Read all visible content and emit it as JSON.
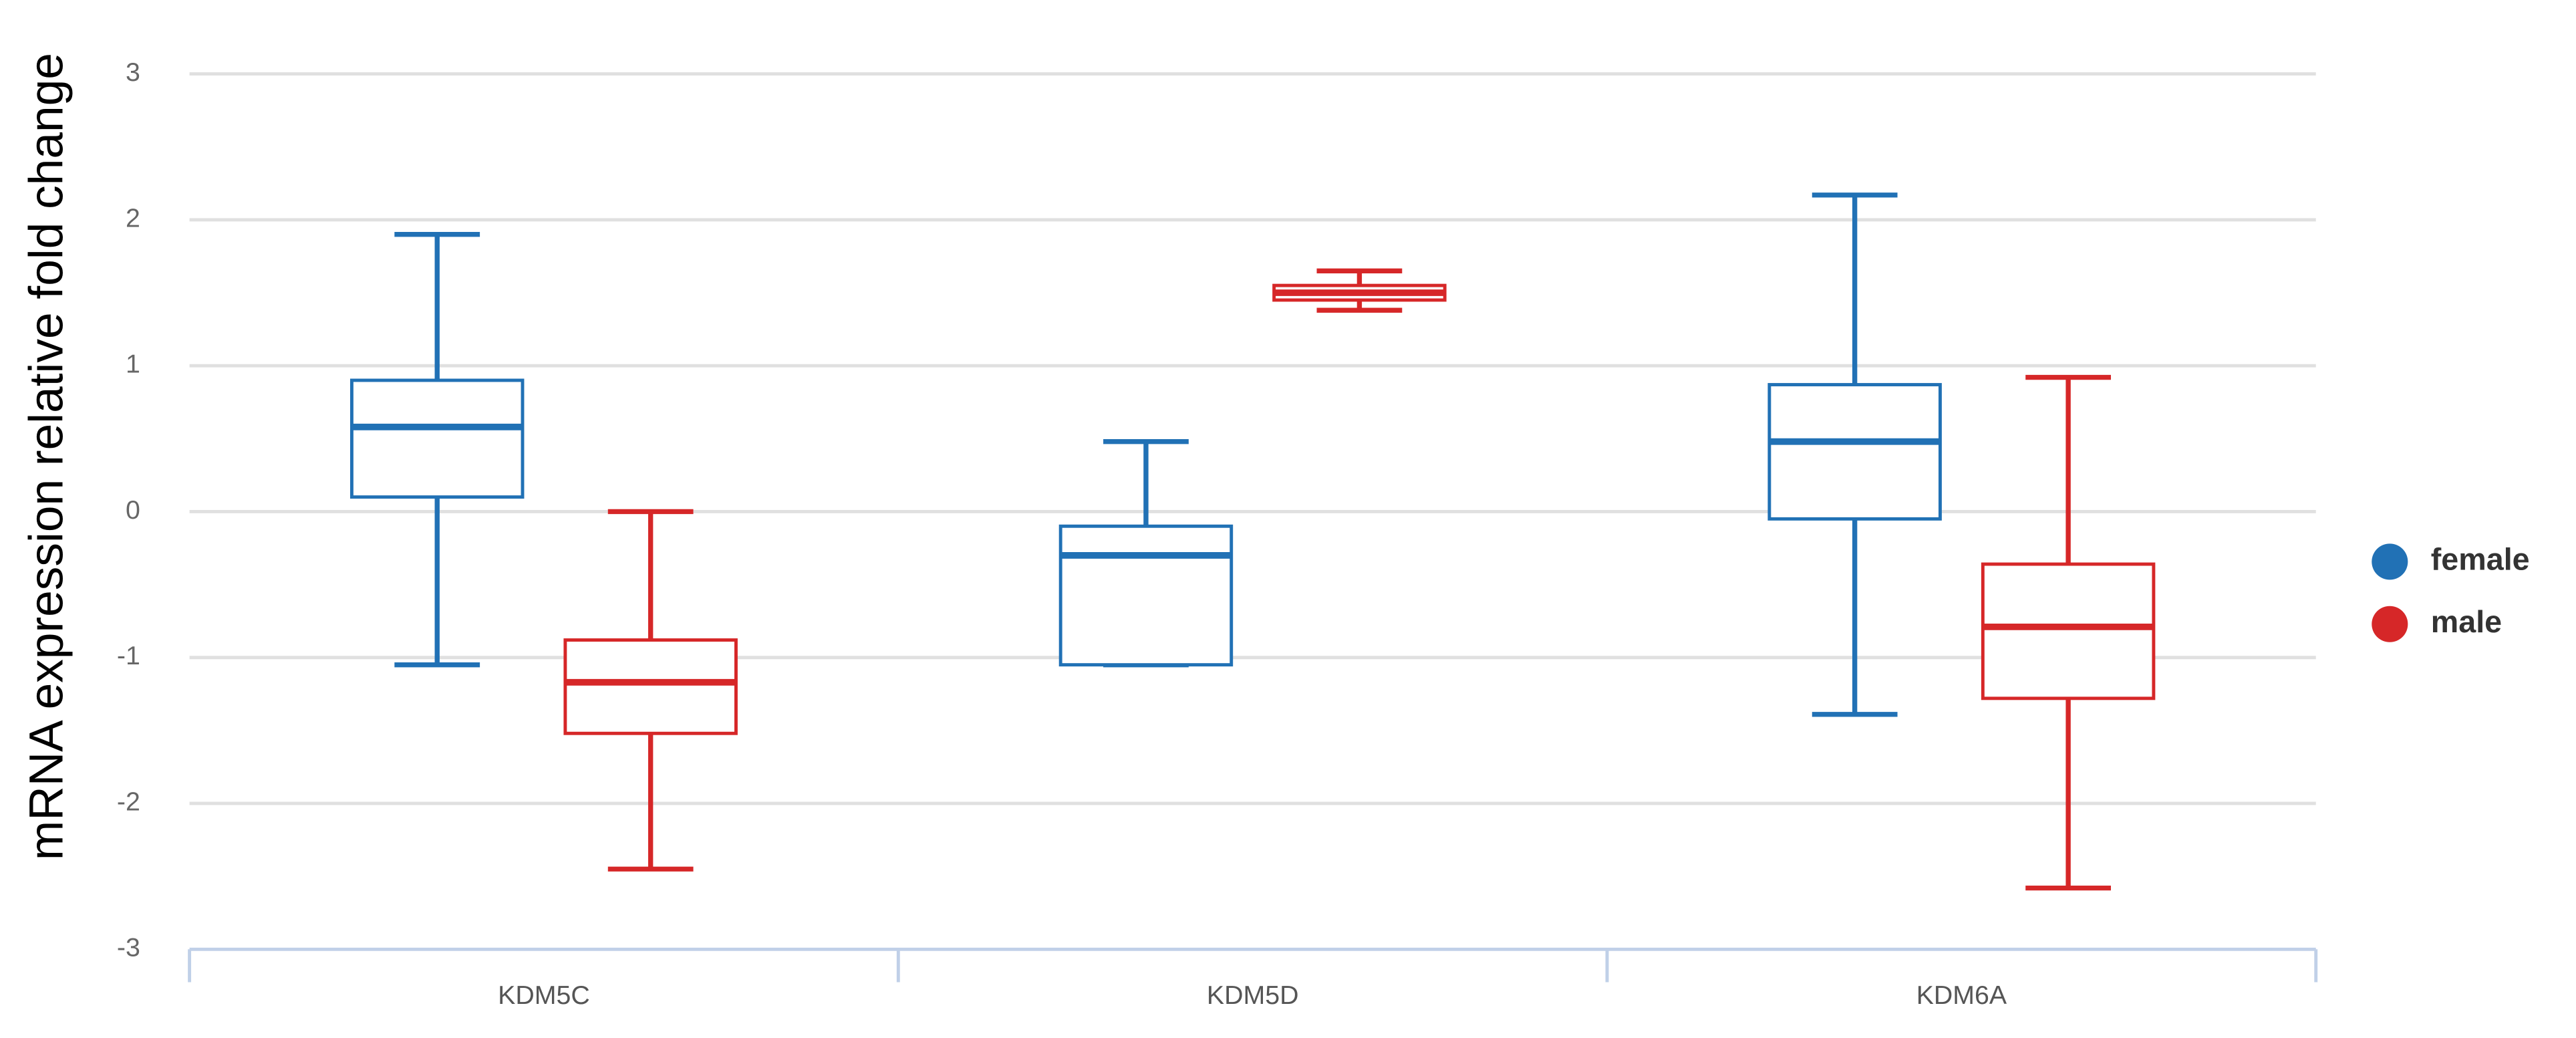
{
  "chart_data": {
    "type": "box",
    "y_label": "mRNA expression relative fold change",
    "categories": [
      "KDM5C",
      "KDM5D",
      "KDM6A"
    ],
    "ylim": [
      -3,
      3
    ],
    "yticks": [
      -3,
      -2,
      -1,
      0,
      1,
      2,
      3
    ],
    "grid": true,
    "legend": "right",
    "series": [
      {
        "name": "female",
        "color": "#2171b5",
        "high": [
          1.9,
          0.48,
          2.17
        ],
        "q3": [
          0.9,
          -0.1,
          0.87
        ],
        "median": [
          0.58,
          -0.3,
          0.48
        ],
        "q1": [
          0.1,
          -1.05,
          -0.05
        ],
        "low": [
          -1.05,
          -1.05,
          -1.39
        ]
      },
      {
        "name": "male",
        "color": "#d62728",
        "high": [
          0,
          1.65,
          0.92
        ],
        "q3": [
          -0.88,
          1.55,
          -0.36
        ],
        "median": [
          -1.17,
          1.5,
          -0.79
        ],
        "q1": [
          -1.52,
          1.45,
          -1.28
        ],
        "low": [
          -2.45,
          1.38,
          -2.58
        ]
      }
    ]
  }
}
